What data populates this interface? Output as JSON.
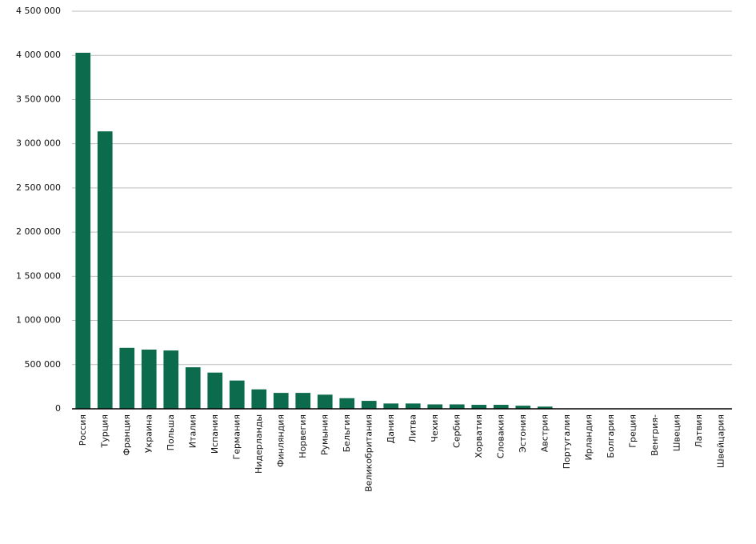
{
  "chart_data": {
    "type": "bar",
    "categories": [
      "Россия",
      "Турция",
      "Франция",
      "Украина",
      "Польша",
      "Италия",
      "Испания",
      "Германия",
      "Нидерланды",
      "Финляндия",
      "Норвегия",
      "Румыния",
      "Бельгия",
      "Великобритания",
      "Дания",
      "Литва",
      "Чехия",
      "Сербия",
      "Хорватия",
      "Словакия",
      "Эстония",
      "Австрия",
      "Португалия",
      "Ирландия",
      "Болгария",
      "Греция",
      "Венгрия-",
      "Швеция",
      "Латвия",
      "Швейцария"
    ],
    "values": [
      4030000,
      3140000,
      690000,
      670000,
      660000,
      470000,
      410000,
      320000,
      220000,
      180000,
      180000,
      160000,
      120000,
      90000,
      60000,
      60000,
      50000,
      50000,
      45000,
      45000,
      35000,
      25000,
      0,
      0,
      0,
      0,
      0,
      0,
      0,
      0
    ],
    "color": "#0b6b4c",
    "ylim": [
      0,
      4500000
    ],
    "yticks": [
      0,
      {
        "value": 500000,
        "label": "500 000"
      },
      {
        "value": 1000000,
        "label": "1 000 000"
      },
      {
        "value": 1500000,
        "label": "1 500 000"
      },
      {
        "value": 2000000,
        "label": "2 000 000"
      },
      {
        "value": 2500000,
        "label": "2 500 000"
      },
      {
        "value": 3000000,
        "label": "3 000 000"
      },
      {
        "value": 3500000,
        "label": "3 500 000"
      },
      {
        "value": 4000000,
        "label": "4 000 000"
      },
      {
        "value": 4500000,
        "label": "4 500 000"
      }
    ],
    "grid": true
  }
}
